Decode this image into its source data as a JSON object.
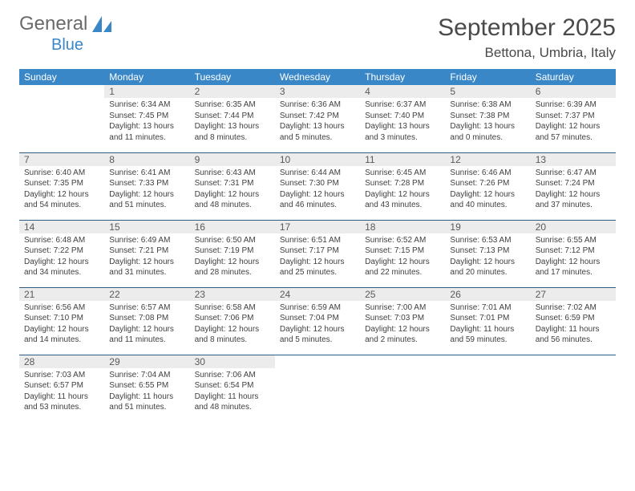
{
  "logo": {
    "text_gray": "General",
    "text_blue": "Blue"
  },
  "title": "September 2025",
  "location": "Bettona, Umbria, Italy",
  "colors": {
    "header_bg": "#3a87c7",
    "header_fg": "#ffffff",
    "daynum_bg": "#ececec",
    "rule": "#2f5b80",
    "text": "#404040"
  },
  "day_headers": [
    "Sunday",
    "Monday",
    "Tuesday",
    "Wednesday",
    "Thursday",
    "Friday",
    "Saturday"
  ],
  "weeks": [
    [
      {
        "n": "",
        "sr": "",
        "ss": "",
        "dl": ""
      },
      {
        "n": "1",
        "sr": "6:34 AM",
        "ss": "7:45 PM",
        "dl": "13 hours and 11 minutes."
      },
      {
        "n": "2",
        "sr": "6:35 AM",
        "ss": "7:44 PM",
        "dl": "13 hours and 8 minutes."
      },
      {
        "n": "3",
        "sr": "6:36 AM",
        "ss": "7:42 PM",
        "dl": "13 hours and 5 minutes."
      },
      {
        "n": "4",
        "sr": "6:37 AM",
        "ss": "7:40 PM",
        "dl": "13 hours and 3 minutes."
      },
      {
        "n": "5",
        "sr": "6:38 AM",
        "ss": "7:38 PM",
        "dl": "13 hours and 0 minutes."
      },
      {
        "n": "6",
        "sr": "6:39 AM",
        "ss": "7:37 PM",
        "dl": "12 hours and 57 minutes."
      }
    ],
    [
      {
        "n": "7",
        "sr": "6:40 AM",
        "ss": "7:35 PM",
        "dl": "12 hours and 54 minutes."
      },
      {
        "n": "8",
        "sr": "6:41 AM",
        "ss": "7:33 PM",
        "dl": "12 hours and 51 minutes."
      },
      {
        "n": "9",
        "sr": "6:43 AM",
        "ss": "7:31 PM",
        "dl": "12 hours and 48 minutes."
      },
      {
        "n": "10",
        "sr": "6:44 AM",
        "ss": "7:30 PM",
        "dl": "12 hours and 46 minutes."
      },
      {
        "n": "11",
        "sr": "6:45 AM",
        "ss": "7:28 PM",
        "dl": "12 hours and 43 minutes."
      },
      {
        "n": "12",
        "sr": "6:46 AM",
        "ss": "7:26 PM",
        "dl": "12 hours and 40 minutes."
      },
      {
        "n": "13",
        "sr": "6:47 AM",
        "ss": "7:24 PM",
        "dl": "12 hours and 37 minutes."
      }
    ],
    [
      {
        "n": "14",
        "sr": "6:48 AM",
        "ss": "7:22 PM",
        "dl": "12 hours and 34 minutes."
      },
      {
        "n": "15",
        "sr": "6:49 AM",
        "ss": "7:21 PM",
        "dl": "12 hours and 31 minutes."
      },
      {
        "n": "16",
        "sr": "6:50 AM",
        "ss": "7:19 PM",
        "dl": "12 hours and 28 minutes."
      },
      {
        "n": "17",
        "sr": "6:51 AM",
        "ss": "7:17 PM",
        "dl": "12 hours and 25 minutes."
      },
      {
        "n": "18",
        "sr": "6:52 AM",
        "ss": "7:15 PM",
        "dl": "12 hours and 22 minutes."
      },
      {
        "n": "19",
        "sr": "6:53 AM",
        "ss": "7:13 PM",
        "dl": "12 hours and 20 minutes."
      },
      {
        "n": "20",
        "sr": "6:55 AM",
        "ss": "7:12 PM",
        "dl": "12 hours and 17 minutes."
      }
    ],
    [
      {
        "n": "21",
        "sr": "6:56 AM",
        "ss": "7:10 PM",
        "dl": "12 hours and 14 minutes."
      },
      {
        "n": "22",
        "sr": "6:57 AM",
        "ss": "7:08 PM",
        "dl": "12 hours and 11 minutes."
      },
      {
        "n": "23",
        "sr": "6:58 AM",
        "ss": "7:06 PM",
        "dl": "12 hours and 8 minutes."
      },
      {
        "n": "24",
        "sr": "6:59 AM",
        "ss": "7:04 PM",
        "dl": "12 hours and 5 minutes."
      },
      {
        "n": "25",
        "sr": "7:00 AM",
        "ss": "7:03 PM",
        "dl": "12 hours and 2 minutes."
      },
      {
        "n": "26",
        "sr": "7:01 AM",
        "ss": "7:01 PM",
        "dl": "11 hours and 59 minutes."
      },
      {
        "n": "27",
        "sr": "7:02 AM",
        "ss": "6:59 PM",
        "dl": "11 hours and 56 minutes."
      }
    ],
    [
      {
        "n": "28",
        "sr": "7:03 AM",
        "ss": "6:57 PM",
        "dl": "11 hours and 53 minutes."
      },
      {
        "n": "29",
        "sr": "7:04 AM",
        "ss": "6:55 PM",
        "dl": "11 hours and 51 minutes."
      },
      {
        "n": "30",
        "sr": "7:06 AM",
        "ss": "6:54 PM",
        "dl": "11 hours and 48 minutes."
      },
      {
        "n": "",
        "sr": "",
        "ss": "",
        "dl": ""
      },
      {
        "n": "",
        "sr": "",
        "ss": "",
        "dl": ""
      },
      {
        "n": "",
        "sr": "",
        "ss": "",
        "dl": ""
      },
      {
        "n": "",
        "sr": "",
        "ss": "",
        "dl": ""
      }
    ]
  ],
  "labels": {
    "sunrise": "Sunrise:",
    "sunset": "Sunset:",
    "daylight": "Daylight:"
  }
}
